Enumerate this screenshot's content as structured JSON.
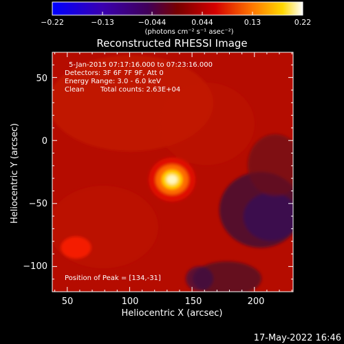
{
  "chart_data": {
    "type": "heatmap",
    "title": "Reconstructed RHESSI Image",
    "xlabel": "Heliocentric X (arcsec)",
    "ylabel": "Heliocentric Y (arcsec)",
    "xlim": [
      38,
      231
    ],
    "ylim": [
      -120,
      70
    ],
    "x_ticks": [
      "50",
      "100",
      "150",
      "200"
    ],
    "y_ticks": [
      "50",
      "0",
      "−50",
      "−100"
    ],
    "colorbar": {
      "ticks": [
        "−0.22",
        "−0.13",
        "−0.044",
        "0.044",
        "0.13",
        "0.22"
      ],
      "range": [
        -0.22,
        0.22
      ],
      "units": "(photons cm⁻² s⁻¹ asec⁻²)"
    },
    "annotations": {
      "time": "5-Jan-2015 07:17:16.000 to 07:23:16.000",
      "detectors": "Detectors: 3F 6F 7F 9F, Att 0",
      "energy": "Energy Range: 3.0 - 6.0 keV",
      "clean": "Clean",
      "counts": "Total counts: 2.63E+04",
      "peak": "Position of Peak = [134,-31]"
    },
    "peak": {
      "x": 134,
      "y": -31,
      "value": 0.22
    },
    "secondary_source": {
      "x": 57,
      "y": -85,
      "value": 0.07
    },
    "negative_region": {
      "x": 205,
      "y": -55,
      "value": -0.04
    }
  },
  "footer_date": "17-May-2022 16:46"
}
